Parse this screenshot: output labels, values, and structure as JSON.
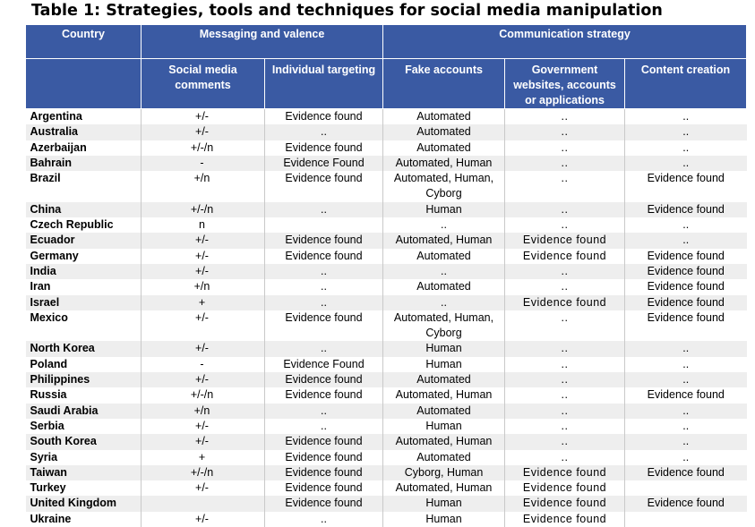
{
  "title": "Table 1: Strategies, tools and techniques for social media manipulation",
  "header": {
    "country": "Country",
    "group_messaging": "Messaging and valence",
    "group_communication": "Communication strategy",
    "social_media_comments": "Social media comments",
    "individual_targeting": "Individual targeting",
    "fake_accounts": "Fake accounts",
    "government_websites": "Government websites, accounts or applications",
    "content_creation": "Content creation"
  },
  "rows": [
    {
      "country": "Argentina",
      "comments": "+/-",
      "targeting": "Evidence found",
      "fake": "Automated",
      "gov": "..",
      "content": ".."
    },
    {
      "country": "Australia",
      "comments": "+/-",
      "targeting": "..",
      "fake": "Automated",
      "gov": "..",
      "content": ".."
    },
    {
      "country": "Azerbaijan",
      "comments": "+/-/n",
      "targeting": "Evidence found",
      "fake": "Automated",
      "gov": "..",
      "content": ".."
    },
    {
      "country": "Bahrain",
      "comments": "-",
      "targeting": "Evidence Found",
      "fake": "Automated, Human",
      "gov": "..",
      "content": ".."
    },
    {
      "country": "Brazil",
      "comments": "+/n",
      "targeting": "Evidence found",
      "fake": "Automated, Human, Cyborg",
      "gov": "..",
      "content": "Evidence found"
    },
    {
      "country": "China",
      "comments": "+/-/n",
      "targeting": "..",
      "fake": "Human",
      "gov": "..",
      "content": "Evidence found"
    },
    {
      "country": "Czech Republic",
      "comments": "n",
      "targeting": "",
      "fake": "..",
      "gov": "..",
      "content": ".."
    },
    {
      "country": "Ecuador",
      "comments": "+/-",
      "targeting": "Evidence found",
      "fake": "Automated, Human",
      "gov": "Evidence found",
      "content": ".."
    },
    {
      "country": "Germany",
      "comments": "+/-",
      "targeting": "Evidence found",
      "fake": "Automated",
      "gov": "Evidence found",
      "content": "Evidence found"
    },
    {
      "country": "India",
      "comments": "+/-",
      "targeting": "..",
      "fake": "..",
      "gov": "..",
      "content": "Evidence found"
    },
    {
      "country": "Iran",
      "comments": "+/n",
      "targeting": "..",
      "fake": "Automated",
      "gov": "..",
      "content": "Evidence found"
    },
    {
      "country": "Israel",
      "comments": "+",
      "targeting": "..",
      "fake": "..",
      "gov": "Evidence found",
      "content": "Evidence found"
    },
    {
      "country": "Mexico",
      "comments": "+/-",
      "targeting": "Evidence found",
      "fake": "Automated, Human, Cyborg",
      "gov": "..",
      "content": "Evidence found"
    },
    {
      "country": "North Korea",
      "comments": "+/-",
      "targeting": "..",
      "fake": "Human",
      "gov": "..",
      "content": ".."
    },
    {
      "country": "Poland",
      "comments": "-",
      "targeting": "Evidence Found",
      "fake": "Human",
      "gov": "..",
      "content": ".."
    },
    {
      "country": "Philippines",
      "comments": "+/-",
      "targeting": "Evidence found",
      "fake": "Automated",
      "gov": "..",
      "content": ".."
    },
    {
      "country": "Russia",
      "comments": "+/-/n",
      "targeting": "Evidence found",
      "fake": "Automated, Human",
      "gov": "..",
      "content": "Evidence found"
    },
    {
      "country": "Saudi Arabia",
      "comments": "+/n",
      "targeting": "..",
      "fake": "Automated",
      "gov": "..",
      "content": ".."
    },
    {
      "country": "Serbia",
      "comments": "+/-",
      "targeting": "..",
      "fake": "Human",
      "gov": "..",
      "content": ".."
    },
    {
      "country": "South Korea",
      "comments": "+/-",
      "targeting": "Evidence found",
      "fake": "Automated, Human",
      "gov": "..",
      "content": ".."
    },
    {
      "country": "Syria",
      "comments": "+",
      "targeting": "Evidence found",
      "fake": "Automated",
      "gov": "..",
      "content": ".."
    },
    {
      "country": "Taiwan",
      "comments": "+/-/n",
      "targeting": "Evidence found",
      "fake": "Cyborg, Human",
      "gov": "Evidence found",
      "content": "Evidence found"
    },
    {
      "country": "Turkey",
      "comments": "+/-",
      "targeting": "Evidence found",
      "fake": "Automated, Human",
      "gov": "Evidence found",
      "content": ""
    },
    {
      "country": "United Kingdom",
      "comments": "",
      "targeting": "Evidence found",
      "fake": "Human",
      "gov": "Evidence found",
      "content": "Evidence found"
    },
    {
      "country": "Ukraine",
      "comments": "+/-",
      "targeting": "..",
      "fake": "Human",
      "gov": "Evidence found",
      "content": ""
    }
  ]
}
